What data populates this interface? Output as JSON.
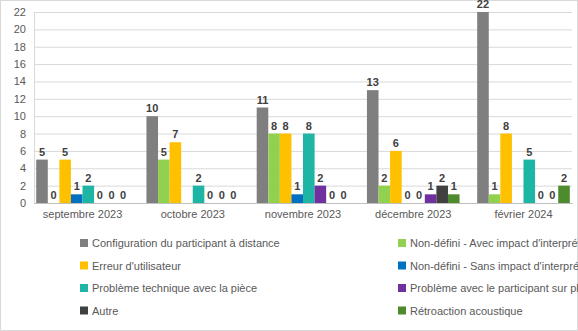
{
  "chart_data": {
    "type": "bar",
    "categories": [
      "septembre 2023",
      "octobre 2023",
      "novembre 2023",
      "décembre 2023",
      "février 2024"
    ],
    "series": [
      {
        "name": "Configuration du participant à distance",
        "color": "#7f7f7f",
        "values": [
          5,
          10,
          11,
          13,
          22
        ]
      },
      {
        "name": "Non-défini - Avec impact d'interprétation",
        "color": "#92d050",
        "values": [
          0,
          5,
          8,
          2,
          1
        ]
      },
      {
        "name": "Erreur d'utilisateur",
        "color": "#ffc000",
        "values": [
          5,
          7,
          8,
          6,
          8
        ]
      },
      {
        "name": "Non-défini - Sans impact d'interprétation",
        "color": "#0070c0",
        "values": [
          1,
          null,
          1,
          0,
          null
        ]
      },
      {
        "name": "Problème technique avec la pièce",
        "color": "#1fb5a5",
        "values": [
          2,
          2,
          8,
          0,
          5
        ]
      },
      {
        "name": "Problème avec le participant sur place",
        "color": "#7030a0",
        "values": [
          0,
          0,
          2,
          1,
          0
        ]
      },
      {
        "name": "Autre",
        "color": "#404040",
        "values": [
          0,
          0,
          0,
          2,
          0
        ]
      },
      {
        "name": "Rétroaction acoustique",
        "color": "#4e8a2e",
        "values": [
          0,
          0,
          0,
          1,
          2
        ]
      }
    ],
    "ylim": [
      0,
      22
    ],
    "yticks": [
      0,
      2,
      4,
      6,
      8,
      10,
      12,
      14,
      16,
      18,
      20,
      22
    ],
    "grid": true,
    "data_labels": true,
    "legend": "bottom"
  }
}
